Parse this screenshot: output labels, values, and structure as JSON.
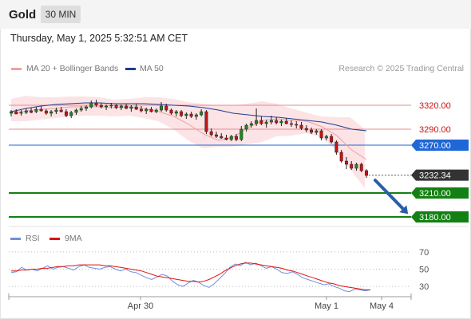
{
  "header": {
    "title": "Gold",
    "timeframe": "30 MIN",
    "datetime": "Thursday, May 1, 2025 5:32:51 AM CET"
  },
  "legend": {
    "ma20": "MA 20 + Bollinger Bands",
    "ma50": "MA 50",
    "credit": "Research © 2025 Trading Central"
  },
  "rsi_legend": {
    "rsi": "RSI",
    "ma9": "9MA"
  },
  "colors": {
    "bull": "#1a8a1a",
    "bear": "#cc1111",
    "ma20": "#f0a0a0",
    "ma50": "#1f3e8a",
    "band": "#fbe0e3",
    "support": "#128012",
    "current": "#1f66d6",
    "last": "#333333",
    "arrow": "#2b5ea6",
    "rsi": "#6f8fe0",
    "rsi_ma": "#dd1111"
  },
  "chart_data": [
    {
      "type": "candlestick",
      "y_range": [
        3166,
        3356
      ],
      "x_labels": [
        "Apr 30",
        "May 1",
        "May 4"
      ],
      "levels": [
        {
          "value": 3320.0,
          "label": "3320.00",
          "kind": "resistance"
        },
        {
          "value": 3290.0,
          "label": "3290.00",
          "kind": "resistance"
        },
        {
          "value": 3270.0,
          "label": "3270.00",
          "kind": "current"
        },
        {
          "value": 3232.34,
          "label": "3232.34",
          "kind": "last"
        },
        {
          "value": 3210.0,
          "label": "3210.00",
          "kind": "support"
        },
        {
          "value": 3180.0,
          "label": "3180.00",
          "kind": "support"
        }
      ],
      "forecast_arrow": {
        "from": 3232,
        "to": 3180
      },
      "ma50": [
        3312,
        3316,
        3319,
        3321,
        3322,
        3323,
        3323,
        3322,
        3322,
        3322,
        3321,
        3320,
        3319,
        3317,
        3314,
        3310,
        3308,
        3306,
        3305,
        3303,
        3301,
        3299,
        3295,
        3290,
        3288
      ],
      "ma20": [
        3310,
        3313,
        3315,
        3316,
        3318,
        3318,
        3318,
        3317,
        3318,
        3316,
        3312,
        3306,
        3296,
        3284,
        3276,
        3280,
        3292,
        3301,
        3303,
        3301,
        3300,
        3293,
        3282,
        3264,
        3252
      ],
      "band_upper": [
        3328,
        3332,
        3330,
        3330,
        3331,
        3331,
        3330,
        3327,
        3328,
        3330,
        3330,
        3328,
        3324,
        3322,
        3320,
        3320,
        3322,
        3325,
        3322,
        3316,
        3311,
        3306,
        3305,
        3305,
        3290
      ],
      "band_lower": [
        3300,
        3300,
        3302,
        3304,
        3306,
        3307,
        3307,
        3306,
        3307,
        3304,
        3300,
        3290,
        3276,
        3266,
        3268,
        3268,
        3271,
        3274,
        3281,
        3282,
        3285,
        3280,
        3265,
        3240,
        3216
      ],
      "candles": [
        [
          3310,
          3314,
          3306,
          3312
        ],
        [
          3312,
          3315,
          3309,
          3309
        ],
        [
          3310,
          3314,
          3307,
          3311
        ],
        [
          3311,
          3316,
          3309,
          3313
        ],
        [
          3313,
          3317,
          3310,
          3311
        ],
        [
          3312,
          3318,
          3310,
          3315
        ],
        [
          3315,
          3319,
          3312,
          3313
        ],
        [
          3313,
          3315,
          3308,
          3310
        ],
        [
          3310,
          3314,
          3306,
          3312
        ],
        [
          3312,
          3317,
          3309,
          3314
        ],
        [
          3314,
          3318,
          3311,
          3312
        ],
        [
          3312,
          3315,
          3305,
          3307
        ],
        [
          3307,
          3313,
          3304,
          3311
        ],
        [
          3311,
          3316,
          3308,
          3314
        ],
        [
          3314,
          3319,
          3312,
          3316
        ],
        [
          3316,
          3320,
          3313,
          3318
        ],
        [
          3318,
          3326,
          3316,
          3323
        ],
        [
          3323,
          3327,
          3318,
          3320
        ],
        [
          3320,
          3323,
          3316,
          3318
        ],
        [
          3318,
          3321,
          3314,
          3319
        ],
        [
          3319,
          3323,
          3316,
          3320
        ],
        [
          3320,
          3322,
          3315,
          3317
        ],
        [
          3317,
          3321,
          3314,
          3319
        ],
        [
          3319,
          3322,
          3315,
          3316
        ],
        [
          3316,
          3320,
          3312,
          3318
        ],
        [
          3318,
          3322,
          3314,
          3315
        ],
        [
          3315,
          3319,
          3311,
          3313
        ],
        [
          3313,
          3317,
          3309,
          3315
        ],
        [
          3315,
          3318,
          3311,
          3312
        ],
        [
          3312,
          3316,
          3310,
          3314
        ],
        [
          3314,
          3324,
          3312,
          3319
        ],
        [
          3319,
          3322,
          3312,
          3314
        ],
        [
          3314,
          3316,
          3308,
          3310
        ],
        [
          3310,
          3314,
          3306,
          3312
        ],
        [
          3312,
          3314,
          3305,
          3307
        ],
        [
          3307,
          3311,
          3303,
          3309
        ],
        [
          3309,
          3312,
          3304,
          3306
        ],
        [
          3306,
          3310,
          3302,
          3308
        ],
        [
          3308,
          3315,
          3306,
          3312
        ],
        [
          3312,
          3314,
          3284,
          3287
        ],
        [
          3287,
          3291,
          3281,
          3283
        ],
        [
          3283,
          3287,
          3279,
          3281
        ],
        [
          3281,
          3285,
          3278,
          3279
        ],
        [
          3279,
          3283,
          3276,
          3277
        ],
        [
          3277,
          3283,
          3275,
          3281
        ],
        [
          3281,
          3284,
          3275,
          3277
        ],
        [
          3277,
          3294,
          3275,
          3290
        ],
        [
          3290,
          3297,
          3287,
          3295
        ],
        [
          3295,
          3300,
          3292,
          3297
        ],
        [
          3297,
          3316,
          3294,
          3301
        ],
        [
          3301,
          3306,
          3295,
          3297
        ],
        [
          3297,
          3302,
          3292,
          3299
        ],
        [
          3299,
          3307,
          3296,
          3301
        ],
        [
          3301,
          3305,
          3296,
          3298
        ],
        [
          3298,
          3302,
          3294,
          3300
        ],
        [
          3300,
          3304,
          3296,
          3297
        ],
        [
          3297,
          3301,
          3293,
          3296
        ],
        [
          3296,
          3300,
          3291,
          3295
        ],
        [
          3295,
          3299,
          3289,
          3291
        ],
        [
          3291,
          3295,
          3286,
          3289
        ],
        [
          3289,
          3292,
          3284,
          3286
        ],
        [
          3286,
          3290,
          3283,
          3288
        ],
        [
          3288,
          3290,
          3276,
          3279
        ],
        [
          3279,
          3283,
          3276,
          3281
        ],
        [
          3281,
          3284,
          3272,
          3274
        ],
        [
          3274,
          3276,
          3258,
          3261
        ],
        [
          3261,
          3264,
          3248,
          3250
        ],
        [
          3250,
          3255,
          3240,
          3246
        ],
        [
          3246,
          3250,
          3239,
          3241
        ],
        [
          3241,
          3248,
          3238,
          3246
        ],
        [
          3246,
          3248,
          3236,
          3238
        ],
        [
          3238,
          3240,
          3229,
          3232
        ]
      ]
    },
    {
      "type": "line",
      "name": "RSI",
      "y_range": [
        20,
        80
      ],
      "y_ticks": [
        70,
        50,
        30
      ],
      "rsi": [
        46,
        47,
        52,
        49,
        50,
        48,
        51,
        54,
        50,
        52,
        53,
        51,
        49,
        53,
        55,
        52,
        51,
        50,
        52,
        53,
        50,
        48,
        50,
        47,
        46,
        43,
        40,
        38,
        41,
        44,
        42,
        36,
        32,
        30,
        34,
        37,
        35,
        31,
        29,
        33,
        39,
        45,
        52,
        56,
        54,
        58,
        55,
        57,
        54,
        51,
        53,
        50,
        46,
        45,
        47,
        44,
        40,
        38,
        36,
        34,
        32,
        33,
        30,
        28,
        25,
        24,
        27,
        26,
        25,
        26
      ],
      "ma9": [
        48,
        48,
        49,
        49,
        50,
        50,
        51,
        51,
        52,
        53,
        53,
        54,
        54,
        55,
        55,
        55,
        55,
        55,
        54,
        54,
        53,
        52,
        51,
        50,
        49,
        48,
        46,
        44,
        42,
        41,
        40,
        39,
        38,
        37,
        36,
        36,
        35,
        36,
        38,
        41,
        44,
        48,
        51,
        54,
        56,
        57,
        57,
        56,
        55,
        54,
        53,
        52,
        51,
        49,
        48,
        46,
        44,
        42,
        40,
        38,
        36,
        34,
        33,
        31,
        30,
        29,
        28,
        27,
        26,
        26
      ]
    }
  ]
}
